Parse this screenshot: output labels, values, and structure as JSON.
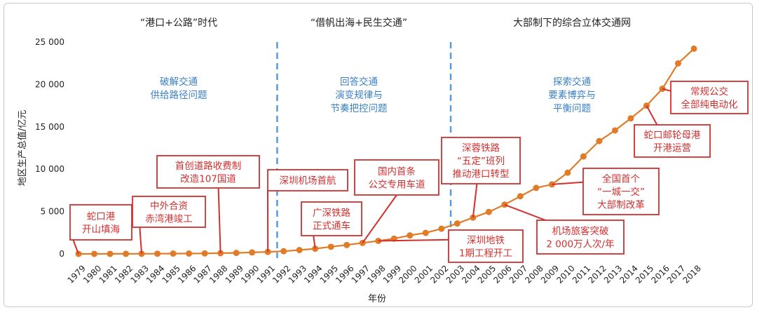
{
  "chart_data": {
    "type": "line",
    "xlabel": "年份",
    "ylabel": "地区生产总值/亿元",
    "ylim": [
      0,
      25000
    ],
    "yticks": [
      0,
      5000,
      10000,
      15000,
      20000,
      25000
    ],
    "ytick_labels": [
      "0",
      "5 000",
      "10 000",
      "15 000",
      "20 000",
      "25 000"
    ],
    "categories": [
      "1979",
      "1980",
      "1981",
      "1982",
      "1983",
      "1984",
      "1985",
      "1986",
      "1987",
      "1988",
      "1989",
      "1990",
      "1991",
      "1992",
      "1993",
      "1994",
      "1995",
      "1996",
      "1997",
      "1998",
      "1999",
      "2000",
      "2001",
      "2002",
      "2003",
      "2004",
      "2005",
      "2006",
      "2007",
      "2008",
      "2009",
      "2010",
      "2011",
      "2012",
      "2013",
      "2014",
      "2015",
      "2016",
      "2017",
      "2018"
    ],
    "values": [
      2,
      3,
      5,
      8,
      13,
      23,
      39,
      42,
      56,
      87,
      116,
      172,
      237,
      317,
      454,
      615,
      843,
      1048,
      1297,
      1535,
      1804,
      2187,
      2482,
      2970,
      3586,
      4282,
      4951,
      5814,
      6802,
      7787,
      8201,
      9582,
      11506,
      13320,
      14572,
      16002,
      17503,
      19493,
      22490,
      24222
    ],
    "line_color": "#e07b28",
    "eras": [
      {
        "label": "“港口+公路”时代",
        "phase": [
          "破解交通",
          "供给路径问题"
        ]
      },
      {
        "label": "“借帆出海+民生交通”",
        "phase": [
          "回答交通",
          "演变规律与",
          "节奏把控问题"
        ]
      },
      {
        "label": "大部制下的综合立体交通网",
        "phase": [
          "探索交通",
          "要素博弈与",
          "平衡问题"
        ]
      }
    ],
    "dividers_after": [
      "1991",
      "2002"
    ],
    "annotations": [
      {
        "lines": [
          "蛇口港",
          "开山填海"
        ],
        "year": "1979"
      },
      {
        "lines": [
          "中外合资",
          "赤湾港竣工"
        ],
        "year": "1983"
      },
      {
        "lines": [
          "首创道路收费制",
          "改造107国道"
        ],
        "year": "1988"
      },
      {
        "lines": [
          "深圳机场首航"
        ],
        "year": "1991"
      },
      {
        "lines": [
          "广深铁路",
          "正式通车"
        ],
        "year": "1994"
      },
      {
        "lines": [
          "国内首条",
          "公交专用车道"
        ],
        "year": "1997"
      },
      {
        "lines": [
          "深圳地铁",
          "1期工程开工"
        ],
        "year": "1998"
      },
      {
        "lines": [
          "深蓉铁路",
          "“五定”班列",
          "推动港口转型"
        ],
        "year": "2004"
      },
      {
        "lines": [
          "机场旅客突破",
          "2 000万人次/年"
        ],
        "year": "2006"
      },
      {
        "lines": [
          "全国首个",
          "“一城一交”",
          "大部制改革"
        ],
        "year": "2009"
      },
      {
        "lines": [
          "蛇口邮轮母港",
          "开港运营"
        ],
        "year": "2015"
      },
      {
        "lines": [
          "常规公交",
          "全部纯电动化"
        ],
        "year": "2016"
      }
    ],
    "colors": {
      "phase_text": "#3a7fc4",
      "annotation": "#d32f2f",
      "divider": "#5b9bd5"
    }
  }
}
